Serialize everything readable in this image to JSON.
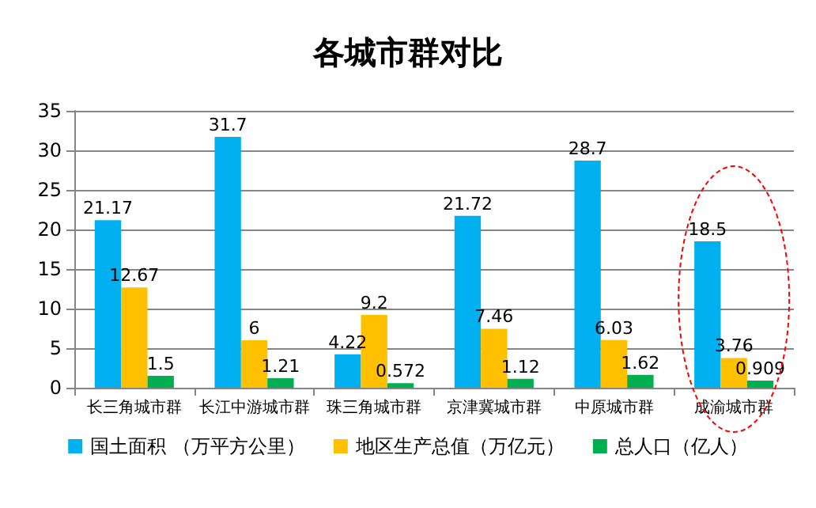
{
  "chart_data": {
    "type": "bar",
    "title": "各城市群对比",
    "categories": [
      "长三角城市群",
      "长江中游城市群",
      "珠三角城市群",
      "京津冀城市群",
      "中原城市群",
      "成渝城市群"
    ],
    "series": [
      {
        "name": "国土面积 （万平方公里）",
        "color": "#00b0f0",
        "values": [
          21.17,
          31.7,
          4.22,
          21.72,
          28.7,
          18.5
        ]
      },
      {
        "name": "地区生产总值（万亿元）",
        "color": "#ffc000",
        "values": [
          12.67,
          6,
          9.2,
          7.46,
          6.03,
          3.76
        ]
      },
      {
        "name": "总人口（亿人）",
        "color": "#00b050",
        "values": [
          1.5,
          1.21,
          0.572,
          1.12,
          1.62,
          0.909
        ]
      }
    ],
    "ylim": [
      0,
      35
    ],
    "yticks": [
      0,
      5,
      10,
      15,
      20,
      25,
      30,
      35
    ],
    "grid": "y",
    "legend": "bottom",
    "data_labels": true
  }
}
